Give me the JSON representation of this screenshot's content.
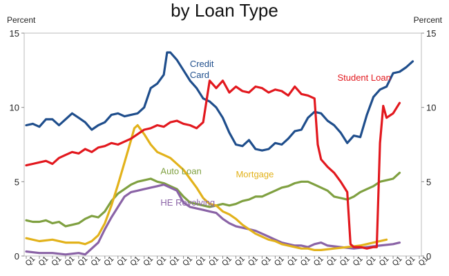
{
  "chart_data": {
    "type": "line",
    "title": "by Loan Type",
    "ylabel_left": "Percent",
    "ylabel_right": "Percent",
    "ylim": [
      0,
      15
    ],
    "yticks": [
      0,
      5,
      10,
      15
    ],
    "xtick_label": "Q1",
    "x_quarters": 120,
    "series": [
      {
        "name": "Credit Card",
        "label_lines": [
          "Credit",
          "Card"
        ],
        "color": "#1f4e8c",
        "points": [
          [
            0,
            8.8
          ],
          [
            2,
            8.9
          ],
          [
            4,
            8.7
          ],
          [
            6,
            9.2
          ],
          [
            8,
            9.2
          ],
          [
            10,
            8.8
          ],
          [
            12,
            9.2
          ],
          [
            14,
            9.6
          ],
          [
            16,
            9.3
          ],
          [
            18,
            9.0
          ],
          [
            20,
            8.5
          ],
          [
            22,
            8.8
          ],
          [
            24,
            9.0
          ],
          [
            26,
            9.5
          ],
          [
            28,
            9.6
          ],
          [
            30,
            9.4
          ],
          [
            32,
            9.5
          ],
          [
            34,
            9.6
          ],
          [
            36,
            10.0
          ],
          [
            38,
            11.3
          ],
          [
            40,
            11.6
          ],
          [
            42,
            12.2
          ],
          [
            43,
            13.7
          ],
          [
            44,
            13.7
          ],
          [
            46,
            13.2
          ],
          [
            48,
            12.5
          ],
          [
            50,
            11.8
          ],
          [
            52,
            11.3
          ],
          [
            54,
            10.6
          ],
          [
            56,
            10.4
          ],
          [
            58,
            10.0
          ],
          [
            60,
            9.3
          ],
          [
            62,
            8.3
          ],
          [
            64,
            7.5
          ],
          [
            66,
            7.4
          ],
          [
            68,
            7.8
          ],
          [
            70,
            7.2
          ],
          [
            72,
            7.1
          ],
          [
            74,
            7.2
          ],
          [
            76,
            7.6
          ],
          [
            78,
            7.5
          ],
          [
            80,
            7.9
          ],
          [
            82,
            8.4
          ],
          [
            84,
            8.5
          ],
          [
            86,
            9.3
          ],
          [
            88,
            9.7
          ],
          [
            90,
            9.6
          ],
          [
            92,
            9.1
          ],
          [
            94,
            8.8
          ],
          [
            96,
            8.3
          ],
          [
            98,
            7.6
          ],
          [
            100,
            8.1
          ],
          [
            102,
            8.0
          ],
          [
            104,
            9.5
          ],
          [
            106,
            10.7
          ],
          [
            108,
            11.2
          ],
          [
            110,
            11.4
          ],
          [
            112,
            12.3
          ],
          [
            114,
            12.4
          ],
          [
            116,
            12.7
          ],
          [
            118,
            13.1
          ]
        ]
      },
      {
        "name": "Student Loan",
        "color": "#e2181e",
        "points": [
          [
            0,
            6.1
          ],
          [
            2,
            6.2
          ],
          [
            4,
            6.3
          ],
          [
            6,
            6.4
          ],
          [
            8,
            6.2
          ],
          [
            10,
            6.6
          ],
          [
            12,
            6.8
          ],
          [
            14,
            7.0
          ],
          [
            16,
            6.9
          ],
          [
            18,
            7.2
          ],
          [
            20,
            7.0
          ],
          [
            22,
            7.3
          ],
          [
            24,
            7.4
          ],
          [
            26,
            7.6
          ],
          [
            28,
            7.5
          ],
          [
            30,
            7.7
          ],
          [
            32,
            7.9
          ],
          [
            34,
            8.2
          ],
          [
            36,
            8.5
          ],
          [
            38,
            8.6
          ],
          [
            40,
            8.8
          ],
          [
            42,
            8.7
          ],
          [
            44,
            9.0
          ],
          [
            46,
            9.1
          ],
          [
            48,
            8.9
          ],
          [
            50,
            8.8
          ],
          [
            52,
            8.6
          ],
          [
            54,
            9.0
          ],
          [
            56,
            11.8
          ],
          [
            58,
            11.3
          ],
          [
            60,
            11.8
          ],
          [
            62,
            11.0
          ],
          [
            64,
            11.4
          ],
          [
            66,
            11.1
          ],
          [
            68,
            11.0
          ],
          [
            70,
            11.4
          ],
          [
            72,
            11.3
          ],
          [
            74,
            11.0
          ],
          [
            76,
            11.2
          ],
          [
            78,
            11.1
          ],
          [
            80,
            10.8
          ],
          [
            82,
            11.4
          ],
          [
            84,
            10.9
          ],
          [
            86,
            10.8
          ],
          [
            88,
            10.6
          ],
          [
            89,
            7.5
          ],
          [
            90,
            6.5
          ],
          [
            92,
            6.0
          ],
          [
            94,
            5.6
          ],
          [
            96,
            5.0
          ],
          [
            98,
            4.3
          ],
          [
            99,
            0.8
          ],
          [
            100,
            0.6
          ],
          [
            102,
            0.6
          ],
          [
            104,
            0.5
          ],
          [
            106,
            0.6
          ],
          [
            107,
            0.6
          ],
          [
            108,
            7.6
          ],
          [
            109,
            10.1
          ],
          [
            110,
            9.3
          ],
          [
            112,
            9.6
          ],
          [
            114,
            10.3
          ]
        ]
      },
      {
        "name": "Mortgage",
        "color": "#e2b21b",
        "points": [
          [
            0,
            1.2
          ],
          [
            4,
            1.0
          ],
          [
            8,
            1.1
          ],
          [
            12,
            0.9
          ],
          [
            16,
            0.9
          ],
          [
            18,
            0.8
          ],
          [
            20,
            1.0
          ],
          [
            22,
            1.4
          ],
          [
            24,
            2.2
          ],
          [
            26,
            3.4
          ],
          [
            28,
            4.8
          ],
          [
            30,
            6.3
          ],
          [
            32,
            7.8
          ],
          [
            33,
            8.6
          ],
          [
            34,
            8.8
          ],
          [
            36,
            8.2
          ],
          [
            38,
            7.5
          ],
          [
            40,
            7.0
          ],
          [
            42,
            6.8
          ],
          [
            44,
            6.6
          ],
          [
            46,
            6.2
          ],
          [
            48,
            5.8
          ],
          [
            50,
            5.2
          ],
          [
            52,
            4.6
          ],
          [
            54,
            3.9
          ],
          [
            56,
            3.5
          ],
          [
            58,
            3.4
          ],
          [
            60,
            3.0
          ],
          [
            62,
            2.8
          ],
          [
            64,
            2.5
          ],
          [
            66,
            2.1
          ],
          [
            68,
            1.8
          ],
          [
            70,
            1.5
          ],
          [
            72,
            1.3
          ],
          [
            74,
            1.1
          ],
          [
            76,
            1.0
          ],
          [
            78,
            0.8
          ],
          [
            80,
            0.7
          ],
          [
            82,
            0.6
          ],
          [
            84,
            0.5
          ],
          [
            86,
            0.5
          ],
          [
            88,
            0.4
          ],
          [
            90,
            0.4
          ],
          [
            94,
            0.5
          ],
          [
            98,
            0.6
          ],
          [
            102,
            0.7
          ],
          [
            106,
            0.9
          ],
          [
            110,
            1.1
          ]
        ]
      },
      {
        "name": "Auto Loan",
        "color": "#7fa040",
        "points": [
          [
            0,
            2.4
          ],
          [
            2,
            2.3
          ],
          [
            4,
            2.3
          ],
          [
            6,
            2.4
          ],
          [
            8,
            2.2
          ],
          [
            10,
            2.3
          ],
          [
            12,
            2.0
          ],
          [
            14,
            2.1
          ],
          [
            16,
            2.2
          ],
          [
            18,
            2.5
          ],
          [
            20,
            2.7
          ],
          [
            22,
            2.6
          ],
          [
            24,
            3.0
          ],
          [
            26,
            3.7
          ],
          [
            28,
            4.2
          ],
          [
            30,
            4.5
          ],
          [
            32,
            4.8
          ],
          [
            34,
            5.0
          ],
          [
            36,
            5.1
          ],
          [
            38,
            5.2
          ],
          [
            40,
            5.0
          ],
          [
            42,
            4.9
          ],
          [
            44,
            4.7
          ],
          [
            46,
            4.5
          ],
          [
            48,
            4.0
          ],
          [
            50,
            3.6
          ],
          [
            52,
            3.5
          ],
          [
            54,
            3.4
          ],
          [
            56,
            3.3
          ],
          [
            58,
            3.4
          ],
          [
            60,
            3.5
          ],
          [
            62,
            3.4
          ],
          [
            64,
            3.5
          ],
          [
            66,
            3.7
          ],
          [
            68,
            3.8
          ],
          [
            70,
            4.0
          ],
          [
            72,
            4.0
          ],
          [
            74,
            4.2
          ],
          [
            76,
            4.4
          ],
          [
            78,
            4.6
          ],
          [
            80,
            4.7
          ],
          [
            82,
            4.9
          ],
          [
            84,
            5.0
          ],
          [
            86,
            5.0
          ],
          [
            88,
            4.8
          ],
          [
            90,
            4.6
          ],
          [
            92,
            4.4
          ],
          [
            94,
            4.0
          ],
          [
            96,
            3.9
          ],
          [
            98,
            3.8
          ],
          [
            100,
            4.0
          ],
          [
            102,
            4.3
          ],
          [
            104,
            4.5
          ],
          [
            106,
            4.7
          ],
          [
            108,
            5.0
          ],
          [
            110,
            5.1
          ],
          [
            112,
            5.2
          ],
          [
            114,
            5.6
          ]
        ]
      },
      {
        "name": "HE Revolving",
        "color": "#8a63a6",
        "points": [
          [
            0,
            0.3
          ],
          [
            4,
            0.2
          ],
          [
            8,
            0.2
          ],
          [
            12,
            0.1
          ],
          [
            16,
            0.2
          ],
          [
            18,
            0.1
          ],
          [
            20,
            0.5
          ],
          [
            22,
            0.9
          ],
          [
            24,
            1.8
          ],
          [
            26,
            2.6
          ],
          [
            28,
            3.3
          ],
          [
            30,
            4.0
          ],
          [
            32,
            4.3
          ],
          [
            34,
            4.4
          ],
          [
            36,
            4.5
          ],
          [
            38,
            4.6
          ],
          [
            40,
            4.7
          ],
          [
            42,
            4.8
          ],
          [
            44,
            4.6
          ],
          [
            46,
            4.4
          ],
          [
            48,
            3.6
          ],
          [
            50,
            3.3
          ],
          [
            52,
            3.2
          ],
          [
            54,
            3.1
          ],
          [
            56,
            3.0
          ],
          [
            58,
            2.9
          ],
          [
            60,
            2.5
          ],
          [
            62,
            2.2
          ],
          [
            64,
            2.0
          ],
          [
            66,
            1.9
          ],
          [
            68,
            1.8
          ],
          [
            70,
            1.7
          ],
          [
            72,
            1.5
          ],
          [
            74,
            1.3
          ],
          [
            76,
            1.1
          ],
          [
            78,
            0.9
          ],
          [
            80,
            0.8
          ],
          [
            82,
            0.7
          ],
          [
            84,
            0.7
          ],
          [
            86,
            0.6
          ],
          [
            88,
            0.8
          ],
          [
            90,
            0.9
          ],
          [
            92,
            0.7
          ],
          [
            96,
            0.6
          ],
          [
            100,
            0.5
          ],
          [
            104,
            0.6
          ],
          [
            108,
            0.7
          ],
          [
            112,
            0.8
          ],
          [
            114,
            0.9
          ]
        ]
      }
    ]
  }
}
